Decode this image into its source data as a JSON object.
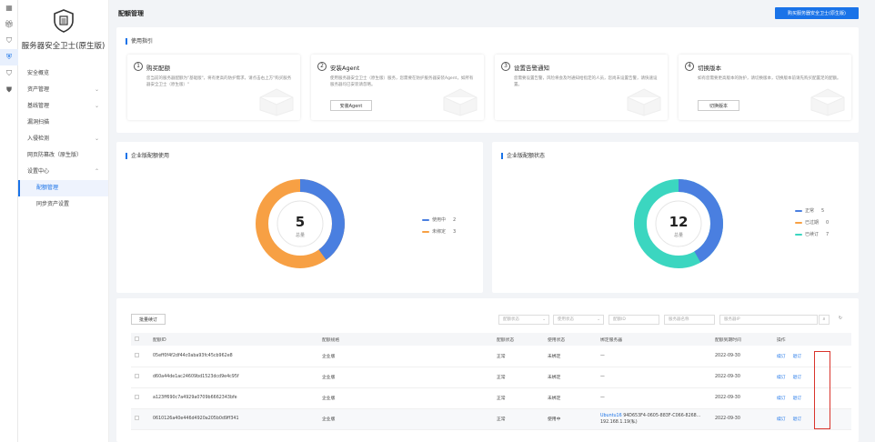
{
  "app": {
    "title": "服务器安全卫士(原生版)"
  },
  "rail": {
    "icons": [
      "grid-icon",
      "gift-icon",
      "shield-outline-icon",
      "shield-active-icon",
      "shield-list-icon",
      "shield-dot-icon"
    ]
  },
  "sidebar": {
    "items": [
      {
        "label": "安全概览",
        "chevron": ""
      },
      {
        "label": "资产管理",
        "chevron": "⌄"
      },
      {
        "label": "基线管理",
        "chevron": "⌄"
      },
      {
        "label": "漏洞扫描",
        "chevron": ""
      },
      {
        "label": "入侵检测",
        "chevron": "⌄"
      },
      {
        "label": "网页防篡改（原生版）",
        "chevron": ""
      },
      {
        "label": "设置中心",
        "chevron": "⌃"
      },
      {
        "label": "配额管理",
        "chevron": ""
      },
      {
        "label": "同步资产设置",
        "chevron": ""
      }
    ]
  },
  "header": {
    "title": "配额管理",
    "buy_label": "购买服务器安全卫士(原生版)"
  },
  "guide": {
    "title": "使用指引",
    "steps": [
      {
        "num": "1",
        "title": "购买配额",
        "desc": "您当前的服务器配额为\"基础版\"，将有更高的防护需求，请点击右上方\"购买服务器安全卫士（原生版）\"",
        "button": ""
      },
      {
        "num": "2",
        "title": "安装Agent",
        "desc": "使用服务器安全卫士（原生版）服务，您需要在防护服务器安装Agent，如所有服务器均已安装请忽略。",
        "button": "安装Agent"
      },
      {
        "num": "3",
        "title": "设置告警通知",
        "desc": "您需要设置告警，风险将会及时通知给指定的人员，您尚未设置告警，请快速设置。",
        "button": ""
      },
      {
        "num": "4",
        "title": "切换版本",
        "desc": "如有您需要更高版本的防护，请切换版本，切换版本前请先购买配置足的配额。",
        "button": "切换版本"
      }
    ]
  },
  "usage": {
    "title": "企业版配额使用",
    "total": "5",
    "total_label": "总量",
    "legend": [
      {
        "label": "使用中",
        "value": "2",
        "color": "#4a7fe0"
      },
      {
        "label": "未绑定",
        "value": "3",
        "color": "#f7a044"
      }
    ]
  },
  "status": {
    "title": "企业版配额状态",
    "total": "12",
    "total_label": "总量",
    "legend": [
      {
        "label": "正常",
        "value": "5",
        "color": "#4a7fe0"
      },
      {
        "label": "已过期",
        "value": "0",
        "color": "#f7a044"
      },
      {
        "label": "已续订",
        "value": "7",
        "color": "#3bd6c0"
      }
    ]
  },
  "table": {
    "batch_label": "批量续订",
    "filters": {
      "quota_status": "配额状态",
      "use_status": "使用状态",
      "quota_id": "配额ID",
      "server_name": "服务器名称",
      "server_ip": "服务器IP"
    },
    "columns": [
      "配额ID",
      "配额规格",
      "配额状态",
      "使用状态",
      "绑定服务器",
      "配额到期时间",
      "操作"
    ],
    "rows": [
      {
        "id": "05eff0f4f2df44c0aba93fc45cb962e8",
        "spec": "企业版",
        "status": "正常",
        "use": "未绑定",
        "server_link": "",
        "server": "—",
        "server_ip": "",
        "expire": "2022-09-30",
        "renew": "续订",
        "unsubscribe": "退订"
      },
      {
        "id": "d60a44de1ac24609bd1523dcd9e4c95f",
        "spec": "企业版",
        "status": "正常",
        "use": "未绑定",
        "server_link": "",
        "server": "—",
        "server_ip": "",
        "expire": "2022-09-30",
        "renew": "续订",
        "unsubscribe": "退订"
      },
      {
        "id": "a123ff690c7a4929a0709b6662343bfe",
        "spec": "企业版",
        "status": "正常",
        "use": "未绑定",
        "server_link": "",
        "server": "—",
        "server_ip": "",
        "expire": "2022-09-30",
        "renew": "续订",
        "unsubscribe": "退订"
      },
      {
        "id": "0610126a40e446d4920a205b0d9ff341",
        "spec": "企业版",
        "status": "正常",
        "use": "使用中",
        "server_link": "Ubuntu16",
        "server": "94D653F4-0605-883F-C066-8268...",
        "server_ip": "192.168.1.19(私)",
        "expire": "2022-09-30",
        "renew": "续订",
        "unsubscribe": "退订"
      }
    ]
  },
  "colors": {
    "accent": "#1a73e8",
    "blue": "#4a7fe0",
    "orange": "#f7a044",
    "teal": "#3bd6c0",
    "highlight": "#d9332b"
  }
}
